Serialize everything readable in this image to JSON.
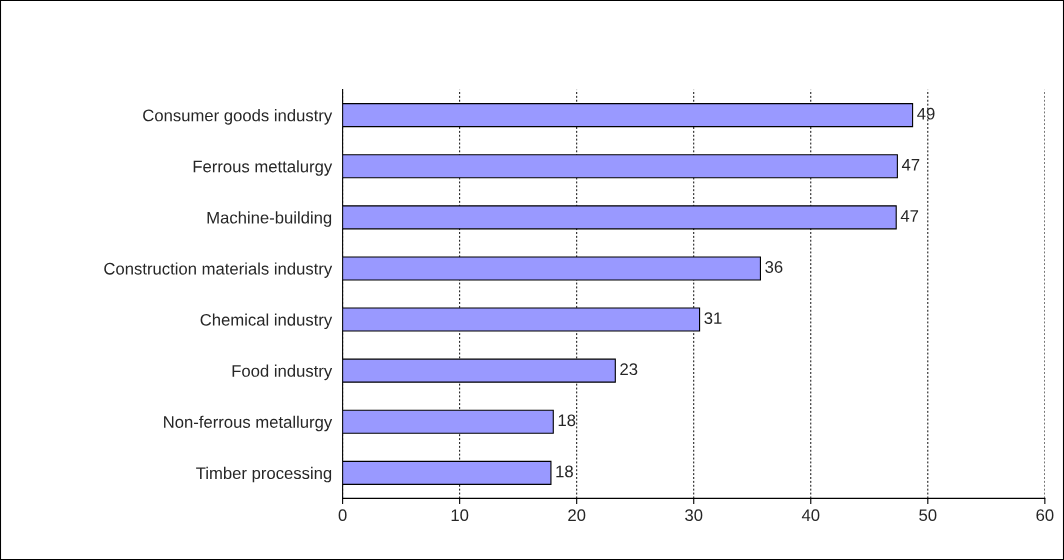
{
  "chart_data": {
    "type": "bar",
    "orientation": "horizontal",
    "categories": [
      "Consumer goods industry",
      "Ferrous mettalurgy",
      "Machine-building",
      "Construction materials industry",
      "Chemical industry",
      "Food industry",
      "Non-ferrous metallurgy",
      "Timber processing"
    ],
    "values": [
      48.7,
      47.4,
      47.3,
      35.7,
      30.5,
      23.3,
      18.0,
      17.8
    ],
    "value_labels": [
      "49",
      "47",
      "47",
      "36",
      "31",
      "23",
      "18",
      "18"
    ],
    "color": "#9999ff",
    "xlim": [
      0,
      60
    ],
    "xticks": [
      0,
      10,
      20,
      30,
      40,
      50,
      60
    ],
    "grid": "x"
  }
}
